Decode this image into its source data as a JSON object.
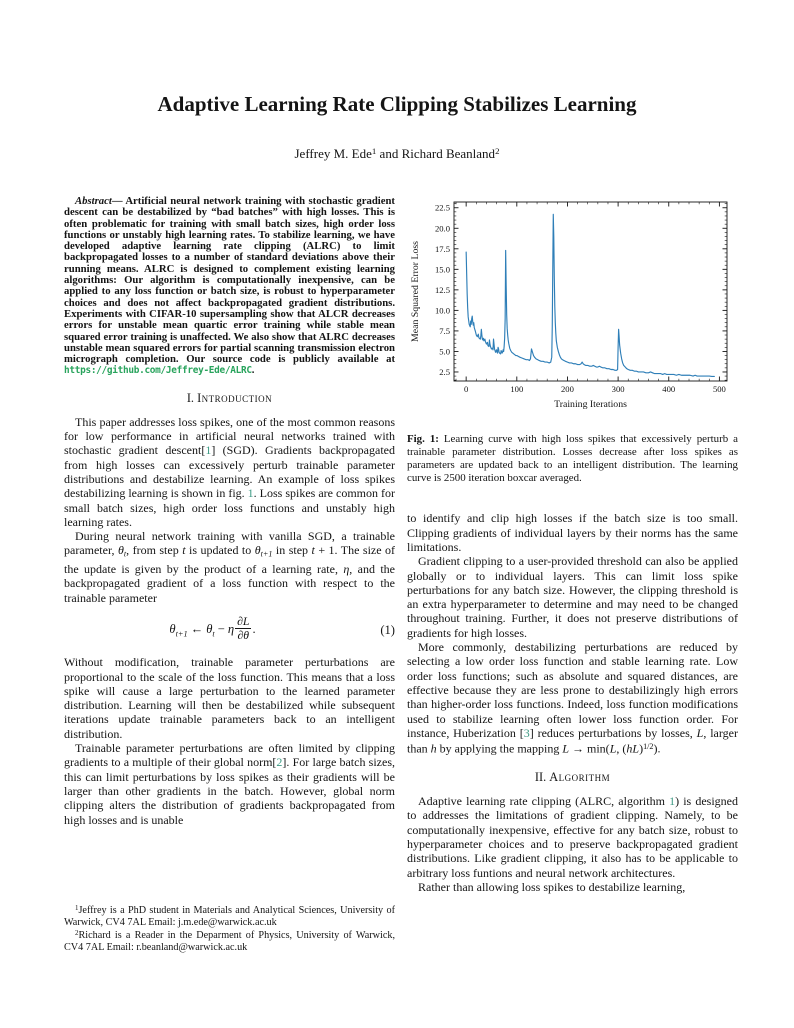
{
  "title": "Adaptive Learning Rate Clipping Stabilizes Learning",
  "authors": [
    {
      "t": "Jeffrey M. Ede"
    },
    {
      "t": "1",
      "s": "sup"
    },
    {
      "t": " and Richard Beanland"
    },
    {
      "t": "2",
      "s": "sup"
    }
  ],
  "colors": {
    "citation_green": "#3f9b85",
    "url_green": "#28a35c",
    "plot_line_blue": "#2f7fb8"
  },
  "abstract": [
    {
      "t": "Abstract",
      "s": "ib"
    },
    {
      "t": "— Artificial neural network training with stochastic gradient descent can be destabilized by “bad batches” with high losses. This is often problematic for training with small batch sizes, high order loss functions or unstably high learning rates. To stabilize learning, we have developed adaptive learning rate clipping (ALRC) to limit backpropagated losses to a number of standard deviations above their running means. ALRC is designed to complement existing learning algorithms: Our algorithm is computationally inexpensive, can be applied to any loss function or batch size, is robust to hyperparameter choices and does not affect backpropagated gradient distributions. Experiments with CIFAR-10 supersampling show that ALCR decreases errors for unstable mean quartic error training while stable mean squared error training is unaffected. We also show that ALRC decreases unstable mean squared errors for partial scanning transmission electron micrograph completion. Our source code is publicly available at "
    },
    {
      "t": "https://github.com/Jeffrey-Ede/ALRC",
      "s": "url"
    },
    {
      "t": "."
    }
  ],
  "sections": {
    "intro": {
      "number": "I.",
      "title": "Introduction"
    },
    "algorithm": {
      "number": "II.",
      "title": "Algorithm"
    }
  },
  "intro": {
    "p1": [
      {
        "t": "This paper addresses loss spikes, one of the most common reasons for low performance in artificial neural networks trained with stochastic gradient descent["
      },
      {
        "t": "1",
        "s": "ref"
      },
      {
        "t": "] (SGD). Gradients backpropagated from high losses can excessively perturb trainable parameter distributions and destabilize learning. An example of loss spikes destabilizing learning is shown in fig. "
      },
      {
        "t": "1",
        "s": "ref"
      },
      {
        "t": ". Loss spikes are common for small batch sizes, high order loss functions and unstably high learning rates."
      }
    ],
    "p2": [
      {
        "t": "During neural network training with vanilla SGD, a trainable parameter, "
      },
      {
        "t": "θ",
        "s": "it"
      },
      {
        "t": "t",
        "s": "sub"
      },
      {
        "t": ", from step "
      },
      {
        "t": "t",
        "s": "it"
      },
      {
        "t": " is updated to "
      },
      {
        "t": "θ",
        "s": "it"
      },
      {
        "t": "t+1",
        "s": "sub"
      },
      {
        "t": " in step "
      },
      {
        "t": "t",
        "s": "it"
      },
      {
        "t": " + 1. The size of the update is given by the product of a learning rate, "
      },
      {
        "t": "η",
        "s": "it"
      },
      {
        "t": ", and the backpropagated gradient of a loss function with respect to the trainable parameter"
      }
    ],
    "p3": [
      {
        "t": "Without modification, trainable parameter perturbations are proportional to the scale of the loss function. This means that a loss spike will cause a large perturbation to the learned parameter distribution. Learning will then be destabilized while subsequent iterations update trainable parameters back to an intelligent distribution."
      }
    ],
    "p4": [
      {
        "t": "Trainable parameter perturbations are often limited by clipping gradients to a multiple of their global norm["
      },
      {
        "t": "2",
        "s": "ref"
      },
      {
        "t": "]. For large batch sizes, this can limit perturbations by loss spikes as their gradients will be larger than other gradients in the batch. However, global norm clipping alters the distribution of gradients backpropagated from high losses and is unable"
      }
    ]
  },
  "equation": {
    "theta": "θ",
    "sub_t1": "t+1",
    "arrow": "←",
    "theta2": "θ",
    "sub_t": "t",
    "minus": "−",
    "eta": "η",
    "frac_num": "∂L",
    "frac_den": "∂θ",
    "period": ".",
    "number": "(1)"
  },
  "footnotes": {
    "fn1": [
      {
        "t": "1",
        "s": "fnsup"
      },
      {
        "t": "Jeffrey is a PhD student in Materials and Analytical Sciences, University of Warwick, CV4 7AL Email: j.m.ede@warwick.ac.uk"
      }
    ],
    "fn2": [
      {
        "t": "2",
        "s": "fnsup"
      },
      {
        "t": "Richard is a Reader in the Deparment of Physics, University of Warwick, CV4 7AL Email: r.beanland@warwick.ac.uk"
      }
    ]
  },
  "figure": {
    "caption": [
      {
        "t": "Fig. 1:",
        "s": "b"
      },
      {
        "t": " Learning curve with high loss spikes that excessively perturb a trainable parameter distribution. Losses decrease after loss spikes as parameters are updated back to an intelligent distribution. The learning curve is 2500 iteration boxcar averaged."
      }
    ]
  },
  "right": {
    "p1": [
      {
        "t": "to identify and clip high losses if the batch size is too small. Clipping gradients of individual layers by their norms has the same limitations."
      }
    ],
    "p2": [
      {
        "t": "Gradient clipping to a user-provided threshold can also be applied globally or to individual layers. This can limit loss spike perturbations for any batch size. However, the clipping threshold is an extra hyperparameter to determine and may need to be changed throughout training. Further, it does not preserve distributions of gradients for high losses."
      }
    ],
    "p3": [
      {
        "t": "More commonly, destabilizing perturbations are reduced by selecting a low order loss function and stable learning rate. Low order loss functions; such as absolute and squared distances, are effective because they are less prone to destabilizingly high errors than higher-order loss functions. Indeed, loss function modifications used to stabilize learning often lower loss function order. For instance, Huberization ["
      },
      {
        "t": "3",
        "s": "ref"
      },
      {
        "t": "] reduces perturbations by losses, "
      },
      {
        "t": "L",
        "s": "it"
      },
      {
        "t": ", larger than "
      },
      {
        "t": "h",
        "s": "it"
      },
      {
        "t": " by applying the mapping "
      },
      {
        "t": "L",
        "s": "it"
      },
      {
        "t": " → min("
      },
      {
        "t": "L",
        "s": "it"
      },
      {
        "t": ", ("
      },
      {
        "t": "hL",
        "s": "it"
      },
      {
        "t": ")"
      },
      {
        "t": "1/2",
        "s": "sup"
      },
      {
        "t": ")."
      }
    ],
    "p4": [
      {
        "t": "Adaptive learning rate clipping (ALRC, algorithm "
      },
      {
        "t": "1",
        "s": "ref"
      },
      {
        "t": ") is designed to addresses the limitations of gradient clipping. Namely, to be computationally inexpensive, effective for any batch size, robust to hyperparameter choices and to preserve backpropagated gradient distributions. Like gradient clipping, it also has to be applicable to arbitrary loss funtions and neural network architectures."
      }
    ],
    "p5": [
      {
        "t": "Rather than allowing loss spikes to destabilize learning,"
      }
    ]
  },
  "chart_data": {
    "type": "line",
    "title": "",
    "xlabel": "Training Iterations",
    "ylabel": "Mean Squared Error Loss",
    "xlim": [
      -24,
      515
    ],
    "ylim": [
      1.4,
      23.2
    ],
    "xticks": [
      0,
      100,
      200,
      300,
      400,
      500
    ],
    "yticks": [
      2.5,
      5.0,
      7.5,
      10.0,
      12.5,
      15.0,
      17.5,
      20.0,
      22.5
    ],
    "x_minor_step": 20,
    "y_minor_step": 0.5,
    "grid": false,
    "legend": null,
    "line_color": "#2f7fb8",
    "series": [
      {
        "name": "Mean squared error loss (2500 iteration boxcar averaged)",
        "points": [
          [
            0,
            17.1
          ],
          [
            1,
            14.5
          ],
          [
            2,
            12.0
          ],
          [
            3,
            10.3
          ],
          [
            4,
            9.2
          ],
          [
            6,
            8.3
          ],
          [
            8,
            8.0
          ],
          [
            9,
            8.7
          ],
          [
            10,
            8.3
          ],
          [
            11,
            9.0
          ],
          [
            12,
            9.3
          ],
          [
            13,
            8.6
          ],
          [
            14,
            8.2
          ],
          [
            15,
            8.5
          ],
          [
            16,
            7.9
          ],
          [
            18,
            7.5
          ],
          [
            20,
            7.0
          ],
          [
            22,
            6.8
          ],
          [
            24,
            7.1
          ],
          [
            25,
            6.7
          ],
          [
            26,
            6.6
          ],
          [
            28,
            6.5
          ],
          [
            29,
            6.9
          ],
          [
            30,
            7.7
          ],
          [
            31,
            7.0
          ],
          [
            32,
            6.5
          ],
          [
            33,
            6.4
          ],
          [
            34,
            6.6
          ],
          [
            35,
            6.3
          ],
          [
            37,
            6.5
          ],
          [
            38,
            6.2
          ],
          [
            40,
            5.9
          ],
          [
            42,
            6.1
          ],
          [
            43,
            5.7
          ],
          [
            45,
            5.6
          ],
          [
            46,
            6.4
          ],
          [
            47,
            5.9
          ],
          [
            48,
            5.6
          ],
          [
            50,
            5.3
          ],
          [
            52,
            5.4
          ],
          [
            53,
            5.2
          ],
          [
            54,
            6.5
          ],
          [
            55,
            5.9
          ],
          [
            56,
            5.3
          ],
          [
            57,
            5.1
          ],
          [
            58,
            4.9
          ],
          [
            60,
            5.2
          ],
          [
            61,
            4.9
          ],
          [
            62,
            4.8
          ],
          [
            63,
            5.5
          ],
          [
            64,
            5.3
          ],
          [
            65,
            4.9
          ],
          [
            66,
            4.8
          ],
          [
            68,
            4.7
          ],
          [
            69,
            5.1
          ],
          [
            70,
            5.0
          ],
          [
            71,
            4.8
          ],
          [
            72,
            4.9
          ],
          [
            73,
            5.2
          ],
          [
            74,
            5.0
          ],
          [
            75,
            5.6
          ],
          [
            76,
            6.6
          ],
          [
            77,
            9.0
          ],
          [
            78,
            17.3
          ],
          [
            79,
            13.0
          ],
          [
            80,
            9.5
          ],
          [
            81,
            7.8
          ],
          [
            82,
            7.0
          ],
          [
            83,
            6.4
          ],
          [
            84,
            6.0
          ],
          [
            85,
            5.7
          ],
          [
            86,
            5.4
          ],
          [
            88,
            5.1
          ],
          [
            90,
            4.9
          ],
          [
            92,
            4.8
          ],
          [
            94,
            4.7
          ],
          [
            96,
            4.6
          ],
          [
            98,
            4.5
          ],
          [
            100,
            4.5
          ],
          [
            103,
            4.4
          ],
          [
            106,
            4.3
          ],
          [
            110,
            4.2
          ],
          [
            114,
            4.1
          ],
          [
            118,
            4.0
          ],
          [
            122,
            4.0
          ],
          [
            125,
            3.9
          ],
          [
            127,
            4.1
          ],
          [
            129,
            5.3
          ],
          [
            131,
            4.9
          ],
          [
            133,
            4.5
          ],
          [
            135,
            4.3
          ],
          [
            138,
            4.1
          ],
          [
            141,
            4.0
          ],
          [
            144,
            3.9
          ],
          [
            148,
            3.8
          ],
          [
            152,
            3.8
          ],
          [
            156,
            3.7
          ],
          [
            160,
            3.7
          ],
          [
            164,
            3.6
          ],
          [
            167,
            3.7
          ],
          [
            169,
            4.3
          ],
          [
            170,
            8.0
          ],
          [
            171,
            15.0
          ],
          [
            172,
            21.7
          ],
          [
            173,
            19.0
          ],
          [
            174,
            14.0
          ],
          [
            175,
            10.5
          ],
          [
            176,
            8.5
          ],
          [
            177,
            7.2
          ],
          [
            178,
            6.3
          ],
          [
            180,
            5.5
          ],
          [
            182,
            5.0
          ],
          [
            184,
            4.6
          ],
          [
            186,
            4.3
          ],
          [
            188,
            4.1
          ],
          [
            190,
            4.0
          ],
          [
            193,
            3.9
          ],
          [
            196,
            3.8
          ],
          [
            200,
            3.7
          ],
          [
            204,
            3.6
          ],
          [
            208,
            3.6
          ],
          [
            212,
            3.5
          ],
          [
            216,
            3.5
          ],
          [
            220,
            3.4
          ],
          [
            224,
            3.4
          ],
          [
            227,
            3.5
          ],
          [
            229,
            3.7
          ],
          [
            231,
            3.5
          ],
          [
            233,
            3.4
          ],
          [
            236,
            3.3
          ],
          [
            240,
            3.3
          ],
          [
            244,
            3.2
          ],
          [
            248,
            3.2
          ],
          [
            251,
            3.3
          ],
          [
            254,
            3.2
          ],
          [
            257,
            3.1
          ],
          [
            260,
            3.1
          ],
          [
            263,
            3.2
          ],
          [
            266,
            3.1
          ],
          [
            270,
            3.0
          ],
          [
            274,
            3.0
          ],
          [
            278,
            2.9
          ],
          [
            282,
            2.9
          ],
          [
            286,
            2.8
          ],
          [
            290,
            2.8
          ],
          [
            294,
            2.7
          ],
          [
            297,
            2.7
          ],
          [
            299,
            2.8
          ],
          [
            300,
            5.5
          ],
          [
            301,
            7.7
          ],
          [
            302,
            6.8
          ],
          [
            303,
            5.8
          ],
          [
            305,
            4.8
          ],
          [
            307,
            4.1
          ],
          [
            309,
            3.6
          ],
          [
            311,
            3.3
          ],
          [
            314,
            3.1
          ],
          [
            317,
            2.9
          ],
          [
            320,
            2.8
          ],
          [
            324,
            2.7
          ],
          [
            328,
            2.7
          ],
          [
            332,
            2.6
          ],
          [
            336,
            2.6
          ],
          [
            340,
            2.5
          ],
          [
            345,
            2.5
          ],
          [
            350,
            2.5
          ],
          [
            355,
            2.4
          ],
          [
            360,
            2.4
          ],
          [
            364,
            2.5
          ],
          [
            368,
            2.4
          ],
          [
            372,
            2.3
          ],
          [
            376,
            2.3
          ],
          [
            380,
            2.3
          ],
          [
            384,
            2.3
          ],
          [
            388,
            2.2
          ],
          [
            392,
            2.3
          ],
          [
            396,
            2.2
          ],
          [
            400,
            2.2
          ],
          [
            405,
            2.2
          ],
          [
            410,
            2.2
          ],
          [
            415,
            2.1
          ],
          [
            420,
            2.2
          ],
          [
            425,
            2.1
          ],
          [
            430,
            2.1
          ],
          [
            436,
            2.1
          ],
          [
            442,
            2.1
          ],
          [
            448,
            2.0
          ],
          [
            452,
            2.1
          ],
          [
            456,
            2.0
          ],
          [
            462,
            2.0
          ],
          [
            468,
            2.0
          ],
          [
            474,
            2.0
          ],
          [
            480,
            2.0
          ],
          [
            485,
            1.95
          ],
          [
            490,
            1.95
          ]
        ]
      }
    ]
  }
}
